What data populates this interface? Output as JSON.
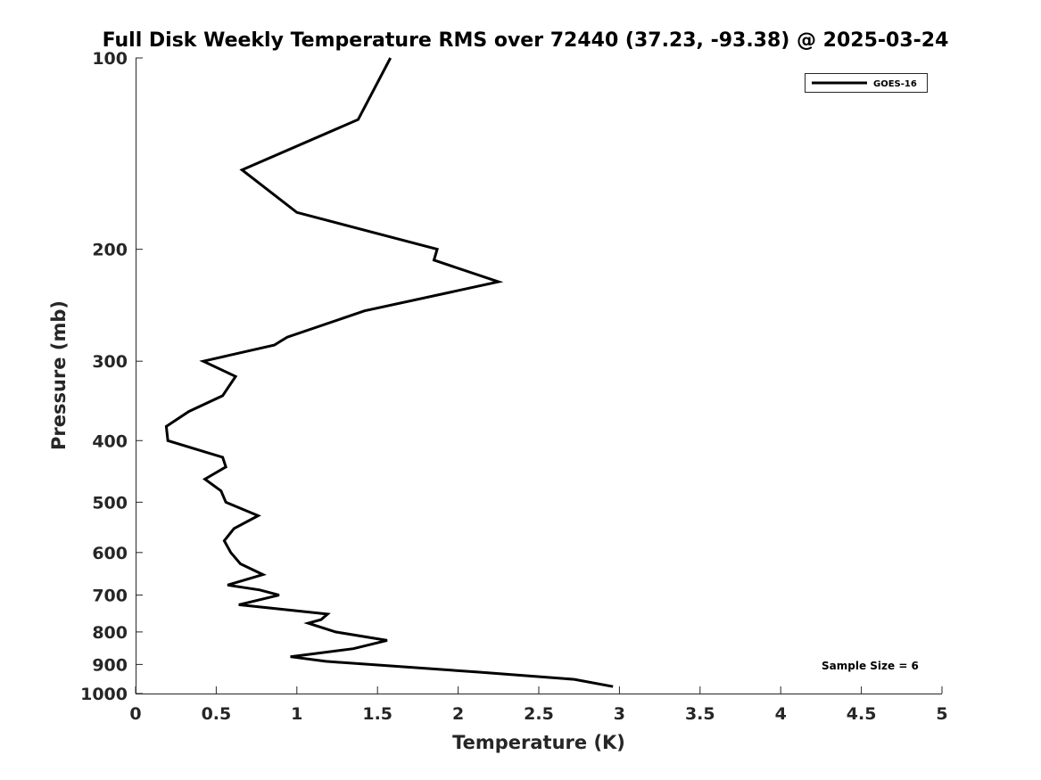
{
  "chart_data": {
    "type": "line",
    "title": "Full Disk Weekly Temperature RMS over 72440 (37.23, -93.38) @ 2025-03-24",
    "xlabel": "Temperature (K)",
    "ylabel": "Pressure (mb)",
    "xlim": [
      0,
      5
    ],
    "ylim": [
      100,
      1000
    ],
    "yscale": "log",
    "y_reversed": true,
    "grid": false,
    "legend_position": "top-right",
    "x_ticks": [
      0,
      0.5,
      1,
      1.5,
      2,
      2.5,
      3,
      3.5,
      4,
      4.5,
      5
    ],
    "x_tick_labels": [
      "0",
      "0.5",
      "1",
      "1.5",
      "2",
      "2.5",
      "3",
      "3.5",
      "4",
      "4.5",
      "5"
    ],
    "y_ticks": [
      100,
      200,
      300,
      400,
      500,
      600,
      700,
      800,
      900,
      1000
    ],
    "y_tick_labels": [
      "100",
      "200",
      "300",
      "400",
      "500",
      "600",
      "700",
      "800",
      "900",
      "1000"
    ],
    "annotation": "Sample Size = 6",
    "series": [
      {
        "name": "GOES-16",
        "color": "#000000",
        "points": [
          [
            1.58,
            100
          ],
          [
            1.38,
            125
          ],
          [
            0.66,
            150
          ],
          [
            1.0,
            175
          ],
          [
            1.87,
            200
          ],
          [
            1.85,
            208
          ],
          [
            2.25,
            225
          ],
          [
            1.42,
            250
          ],
          [
            0.94,
            275
          ],
          [
            0.86,
            283
          ],
          [
            0.42,
            300
          ],
          [
            0.62,
            317
          ],
          [
            0.54,
            340
          ],
          [
            0.33,
            360
          ],
          [
            0.19,
            380
          ],
          [
            0.2,
            400
          ],
          [
            0.54,
            425
          ],
          [
            0.56,
            440
          ],
          [
            0.43,
            460
          ],
          [
            0.53,
            480
          ],
          [
            0.56,
            500
          ],
          [
            0.76,
            525
          ],
          [
            0.61,
            550
          ],
          [
            0.55,
            575
          ],
          [
            0.59,
            600
          ],
          [
            0.65,
            625
          ],
          [
            0.79,
            650
          ],
          [
            0.57,
            675
          ],
          [
            0.77,
            687
          ],
          [
            0.89,
            700
          ],
          [
            0.64,
            725
          ],
          [
            1.19,
            750
          ],
          [
            1.15,
            765
          ],
          [
            1.07,
            775
          ],
          [
            1.24,
            800
          ],
          [
            1.56,
            825
          ],
          [
            1.35,
            850
          ],
          [
            0.96,
            875
          ],
          [
            1.18,
            890
          ],
          [
            2.12,
            925
          ],
          [
            2.72,
            950
          ],
          [
            2.96,
            975
          ]
        ]
      }
    ]
  }
}
